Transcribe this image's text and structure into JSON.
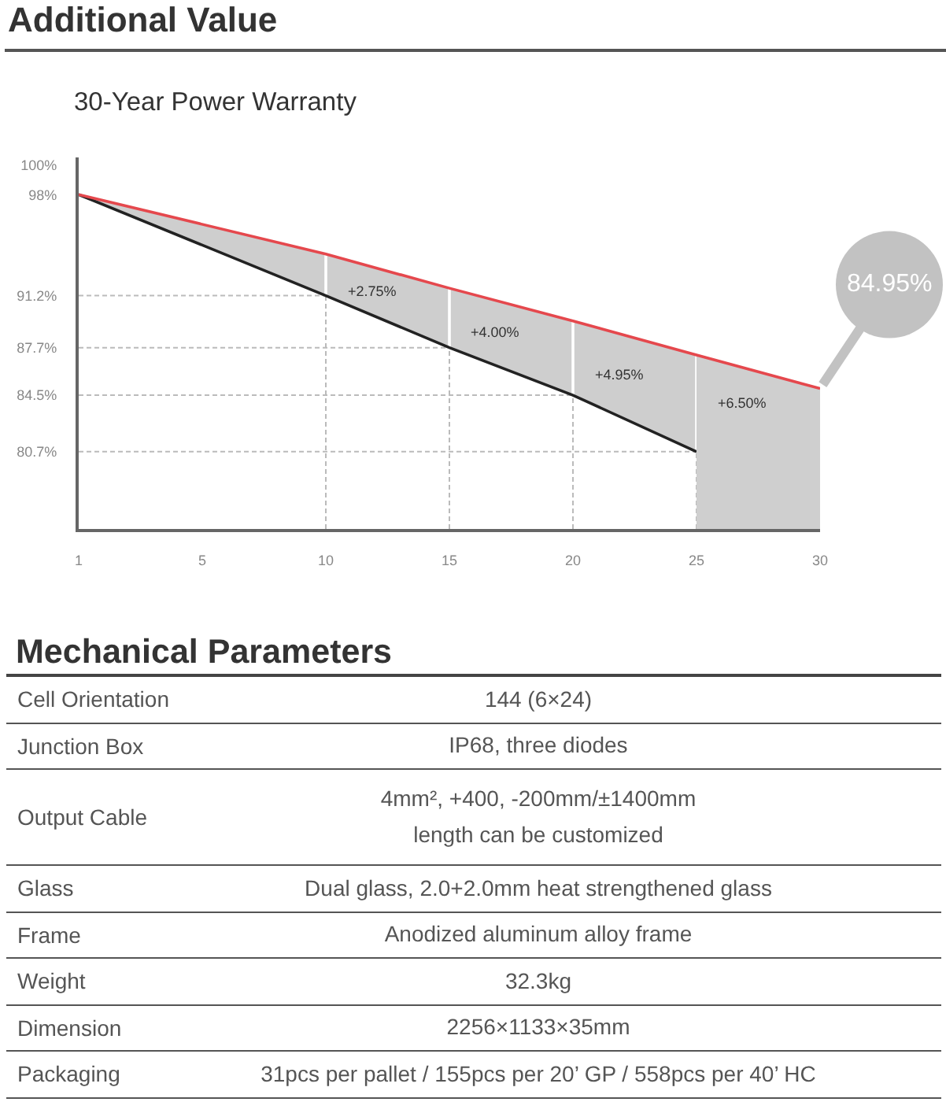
{
  "chart_data": [
    {
      "type": "line",
      "title": "Additional Value",
      "subtitle": "30-Year Power Warranty",
      "categories": [
        "1",
        "5",
        "10",
        "15",
        "20",
        "25",
        "30"
      ],
      "series": [
        {
          "color": "#222222",
          "x": [
            "1",
            "10",
            "15",
            "20",
            "25"
          ],
          "values": [
            98,
            91.2,
            87.7,
            84.5,
            80.7
          ],
          "lower": [
            98,
            91.2,
            87.7,
            84.5,
            80.7
          ],
          "upper": [
            98,
            94.0,
            91.7,
            89.5,
            87.2
          ]
        },
        {
          "type": "area",
          "color": "#cfcfcf",
          "x": [
            "25",
            "30"
          ],
          "values": [
            87.2,
            84.95
          ]
        },
        {
          "color": "#e5484d",
          "x": [
            "1",
            "10",
            "15",
            "20",
            "25",
            "30"
          ],
          "values": [
            98,
            94.0,
            91.7,
            89.5,
            87.2,
            84.95
          ]
        }
      ],
      "ylim": [
        75.5,
        100.5
      ],
      "yticks": [
        {
          "value": 100,
          "label": "100%"
        },
        {
          "value": 98,
          "label": "98%"
        },
        {
          "value": 91.2,
          "label": "91.2%"
        },
        {
          "value": 87.7,
          "label": "87.7%"
        },
        {
          "value": 84.5,
          "label": "84.5%"
        },
        {
          "value": 80.7,
          "label": "80.7%"
        }
      ],
      "ref_lines": [
        {
          "axis": "y",
          "value": 91.2,
          "color": "#bbbbbb",
          "line_style": "dashed"
        },
        {
          "axis": "y",
          "value": 87.7,
          "color": "#bbbbbb",
          "line_style": "dashed"
        },
        {
          "axis": "y",
          "value": 84.5,
          "color": "#bbbbbb",
          "line_style": "dashed"
        },
        {
          "axis": "y",
          "value": 80.7,
          "color": "#bbbbbb",
          "line_style": "dashed"
        },
        {
          "axis": "x",
          "value": "10",
          "color": "#bbbbbb",
          "line_style": "dashed"
        },
        {
          "axis": "x",
          "value": "15",
          "color": "#bbbbbb",
          "line_style": "dashed"
        },
        {
          "axis": "x",
          "value": "20",
          "color": "#bbbbbb",
          "line_style": "dashed"
        },
        {
          "axis": "x",
          "value": "25",
          "color": "#bbbbbb",
          "line_style": "dashed"
        }
      ],
      "annotations": [
        "+2.75%",
        "+4.00%",
        "+4.95%",
        "+6.50%",
        {
          "text": "84.95%",
          "x": "30",
          "y": 84.95
        }
      ]
    },
    {
      "type": "other",
      "title": "Mechanical Parameters",
      "categories": [
        "Cell Orientation",
        "Junction Box",
        "Output Cable",
        "Glass",
        "Frame",
        "Weight",
        "Dimension",
        "Packaging"
      ],
      "annotations": [
        "144 (6×24)",
        "IP68, three diodes",
        "4mm², +400, -200mm/±1400mm\nlength can be customized",
        "Dual glass, 2.0+2.0mm heat strengthened glass",
        "Anodized aluminum alloy frame",
        "32.3kg",
        "2256×1133×35mm",
        "31pcs per pallet / 155pcs per 20’ GP / 558pcs per 40’ HC"
      ]
    }
  ]
}
